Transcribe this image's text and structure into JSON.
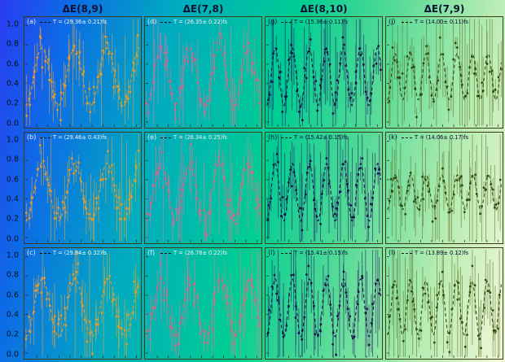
{
  "figure": {
    "kind": "multipanel energy-gap oscillation figure",
    "background_gradient": [
      "#2a3cf2",
      "#00aac0",
      "#00cd92",
      "#b7ecb2",
      "#f2f8da"
    ],
    "panel_border_color": "#3c3c14",
    "legend_dash_color": "#0c0c0c"
  },
  "chart_data": {
    "type": "scatter",
    "title": "",
    "xlabel": "",
    "ylabel": "",
    "x_range_fs": [
      0,
      103
    ],
    "ylim": [
      -0.05,
      1.08
    ],
    "y_ticks": [
      "1.0",
      "0.8",
      "0.6",
      "0.4",
      "0.2",
      "0.0"
    ],
    "model": "y(t) = offset - amplitude*cos(2*pi*t/T), dashed fit over scattered points with vertical error bars",
    "offset": 0.47,
    "amplitude": 0.3,
    "noise_sigma": 0.09,
    "n_points": 55,
    "fit_style": "dashed",
    "legend_position": "top-inside",
    "columns": [
      {
        "title": "ΔE(8,9)",
        "color": "#e69a28",
        "err_color": "#e6a93f",
        "text_color": "#eef2f4",
        "err_scale": 0.15,
        "long_frac": 0.07
      },
      {
        "title": "ΔE(7,8)",
        "color": "#df6187",
        "err_color": "#e57a9c",
        "text_color": "#f2eef2",
        "err_scale": 0.17,
        "long_frac": 0.09
      },
      {
        "title": "ΔE(8,10)",
        "color": "#14144a",
        "err_color": "#1c1c5e",
        "text_color": "#0b1433",
        "err_scale": 0.26,
        "long_frac": 0.14
      },
      {
        "title": "ΔE(7,9)",
        "color": "#2e4b12",
        "err_color": "#5f7226",
        "text_color": "#0b1433",
        "err_scale": 0.26,
        "long_frac": 0.16
      }
    ],
    "panels": [
      {
        "label": "(a)",
        "column": 0,
        "period_fs": 29.36,
        "period_err_fs": 0.21,
        "annotation": "T = (29.36± 0.21)fs"
      },
      {
        "label": "(d)",
        "column": 1,
        "period_fs": 26.35,
        "period_err_fs": 0.22,
        "annotation": "T = (26.35± 0.22)fs"
      },
      {
        "label": "(g)",
        "column": 2,
        "period_fs": 15.36,
        "period_err_fs": 0.11,
        "annotation": "T = (15.36± 0.11)fs"
      },
      {
        "label": "(j)",
        "column": 3,
        "period_fs": 14.0,
        "period_err_fs": 0.11,
        "amplitude": 0.24,
        "annotation": "T = (14.00± 0.11)fs"
      },
      {
        "label": "(b)",
        "column": 0,
        "period_fs": 29.46,
        "period_err_fs": 0.43,
        "annotation": "T = (29.46± 0.43)fs"
      },
      {
        "label": "(e)",
        "column": 1,
        "period_fs": 26.34,
        "period_err_fs": 0.25,
        "annotation": "T = (26.34± 0.25)fs"
      },
      {
        "label": "(h)",
        "column": 2,
        "period_fs": 15.42,
        "period_err_fs": 0.15,
        "annotation": "T = (15.42± 0.15)fs"
      },
      {
        "label": "(k)",
        "column": 3,
        "period_fs": 14.06,
        "period_err_fs": 0.17,
        "amplitude": 0.18,
        "annotation": "T = (14.06± 0.17)fs"
      },
      {
        "label": "(c)",
        "column": 0,
        "period_fs": 29.84,
        "period_err_fs": 0.32,
        "annotation": "T = (29.84± 0.32)fs"
      },
      {
        "label": "(f)",
        "column": 1,
        "period_fs": 26.78,
        "period_err_fs": 0.22,
        "annotation": "T = (26.78± 0.22)fs"
      },
      {
        "label": "(i)",
        "column": 2,
        "period_fs": 15.41,
        "period_err_fs": 0.15,
        "annotation": "T = (15.41± 0.15)fs"
      },
      {
        "label": "(l)",
        "column": 3,
        "period_fs": 13.89,
        "period_err_fs": 0.12,
        "amplitude": 0.28,
        "annotation": "T = (13.89± 0.12)fs"
      }
    ]
  }
}
